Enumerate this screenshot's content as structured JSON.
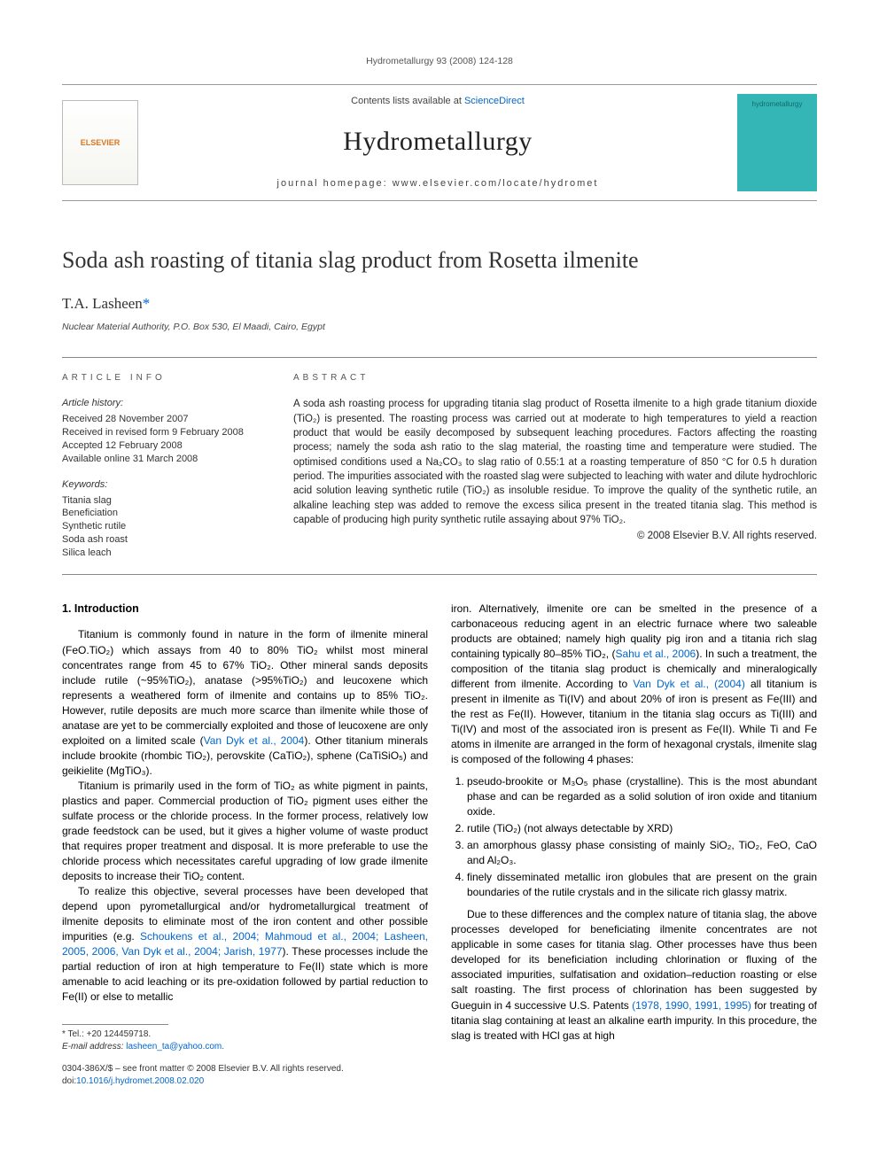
{
  "journal": {
    "header_line": "Hydrometallurgy 93 (2008) 124-128",
    "contents_prefix": "Contents lists available at ",
    "contents_link": "ScienceDirect",
    "name": "Hydrometallurgy",
    "homepage_prefix": "journal homepage: ",
    "homepage": "www.elsevier.com/locate/hydromet",
    "publisher_logo_text": "ELSEVIER",
    "cover_text": "hydrometallurgy"
  },
  "article": {
    "title": "Soda ash roasting of titania slag product from Rosetta ilmenite",
    "author": "T.A. Lasheen",
    "corr_symbol": "*",
    "affiliation": "Nuclear Material Authority, P.O. Box 530, El Maadi, Cairo, Egypt"
  },
  "info": {
    "heading": "ARTICLE INFO",
    "history_label": "Article history:",
    "history": [
      "Received 28 November 2007",
      "Received in revised form 9 February 2008",
      "Accepted 12 February 2008",
      "Available online 31 March 2008"
    ],
    "keywords_label": "Keywords:",
    "keywords": [
      "Titania slag",
      "Beneficiation",
      "Synthetic rutile",
      "Soda ash roast",
      "Silica leach"
    ]
  },
  "abstract": {
    "heading": "ABSTRACT",
    "text": "A soda ash roasting process for upgrading titania slag product of Rosetta ilmenite to a high grade titanium dioxide (TiO₂) is presented. The roasting process was carried out at moderate to high temperatures to yield a reaction product that would be easily decomposed by subsequent leaching procedures. Factors affecting the roasting process; namely the soda ash ratio to the slag material, the roasting time and temperature were studied. The optimised conditions used a Na₂CO₃ to slag ratio of 0.55:1 at a roasting temperature of 850 °C for 0.5 h duration period. The impurities associated with the roasted slag were subjected to leaching with water and dilute hydrochloric acid solution leaving synthetic rutile (TiO₂) as insoluble residue. To improve the quality of the synthetic rutile, an alkaline leaching step was added to remove the excess silica present in the treated titania slag. This method is capable of producing high purity synthetic rutile assaying about 97% TiO₂.",
    "copyright": "© 2008 Elsevier B.V. All rights reserved."
  },
  "body": {
    "intro_heading": "1. Introduction",
    "left_p1": "Titanium is commonly found in nature in the form of ilmenite mineral (FeO.TiO₂) which assays from 40 to 80% TiO₂ whilst most mineral concentrates range from 45 to 67% TiO₂. Other mineral sands deposits include rutile (~95%TiO₂), anatase (>95%TiO₂) and leucoxene which represents a weathered form of ilmenite and contains up to 85% TiO₂. However, rutile deposits are much more scarce than ilmenite while those of anatase are yet to be commercially exploited and those of leucoxene are only exploited on a limited scale (",
    "left_p1_link": "Van Dyk et al., 2004",
    "left_p1b": "). Other titanium minerals include brookite (rhombic TiO₂), perovskite (CaTiO₂), sphene (CaTiSiO₅) and geikielite (MgTiO₃).",
    "left_p2": "Titanium is primarily used in the form of TiO₂ as white pigment in paints, plastics and paper. Commercial production of TiO₂ pigment uses either the sulfate process or the chloride process. In the former process, relatively low grade feedstock can be used, but it gives a higher volume of waste product that requires proper treatment and disposal. It is more preferable to use the chloride process which necessitates careful upgrading of low grade ilmenite deposits to increase their TiO₂ content.",
    "left_p3a": "To realize this objective, several processes have been developed that depend upon pyrometallurgical and/or hydrometallurgical treatment of ilmenite deposits to eliminate most of the iron content and other possible impurities (e.g. ",
    "left_p3_link": "Schoukens et al., 2004; Mahmoud et al., 2004; Lasheen, 2005, 2006, Van Dyk et al., 2004; Jarish, 1977",
    "left_p3b": "). These processes include the partial reduction of iron at high temperature to Fe(II) state which is more amenable to acid leaching or its pre-oxidation followed by partial reduction to Fe(II) or else to metallic",
    "right_p1a": "iron. Alternatively, ilmenite ore can be smelted in the presence of a carbonaceous reducing agent in an electric furnace where two saleable products are obtained; namely high quality pig iron and a titania rich slag containing typically 80–85% TiO₂, (",
    "right_p1_link1": "Sahu et al., 2006",
    "right_p1b": "). In such a treatment, the composition of the titania slag product is chemically and mineralogically different from ilmenite. According to ",
    "right_p1_link2": "Van Dyk et al., (2004)",
    "right_p1c": " all titanium is present in ilmenite as Ti(IV) and about 20% of iron is present as Fe(III) and the rest as Fe(II). However, titanium in the titania slag occurs as Ti(III) and Ti(IV) and most of the associated iron is present as Fe(II). While Ti and Fe atoms in ilmenite are arranged in the form of hexagonal crystals, ilmenite slag is composed of the following 4 phases:",
    "phases": [
      "pseudo-brookite or M₃O₅ phase (crystalline). This is the most abundant phase and can be regarded as a solid solution of iron oxide and titanium oxide.",
      "rutile (TiO₂) (not always detectable by XRD)",
      "an amorphous glassy phase consisting of mainly SiO₂, TiO₂, FeO, CaO and Al₂O₃.",
      "finely disseminated metallic iron globules that are present on the grain boundaries of the rutile crystals and in the silicate rich glassy matrix."
    ],
    "right_p2a": "Due to these differences and the complex nature of titania slag, the above processes developed for beneficiating ilmenite concentrates are not applicable in some cases for titania slag. Other processes have thus been developed for its beneficiation including chlorination or fluxing of the associated impurities, sulfatisation and oxidation–reduction roasting or else salt roasting. The first process of chlorination has been suggested by Gueguin in 4 successive U.S. Patents ",
    "right_p2_link": "(1978, 1990, 1991, 1995)",
    "right_p2b": " for treating of titania slag containing at least an alkaline earth impurity. In this procedure, the slag is treated with HCl gas at high"
  },
  "footer": {
    "tel_label": "* Tel.: ",
    "tel": "+20 124459718.",
    "email_label": "E-mail address: ",
    "email": "lasheen_ta@yahoo.com.",
    "issn": "0304-386X/$ – see front matter © 2008 Elsevier B.V. All rights reserved.",
    "doi_label": "doi:",
    "doi": "10.1016/j.hydromet.2008.02.020"
  }
}
